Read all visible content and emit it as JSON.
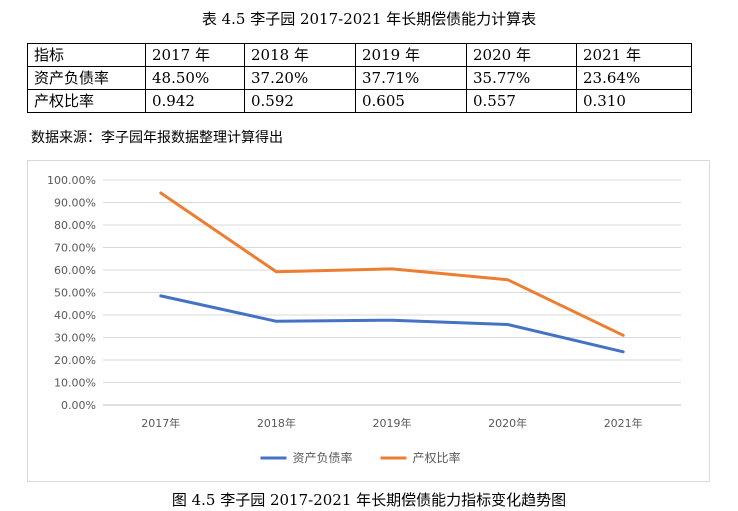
{
  "table_title": "表 4.5 李子园 2017-2021 年长期偿债能力计算表",
  "table": {
    "header": [
      "指标",
      "2017 年",
      "2018 年",
      "2019 年",
      "2020 年",
      "2021 年"
    ],
    "rows": [
      [
        "资产负债率",
        "48.50%",
        "37.20%",
        "37.71%",
        "35.77%",
        "23.64%"
      ],
      [
        "产权比率",
        "0.942",
        "0.592",
        "0.605",
        "0.557",
        "0.310"
      ]
    ]
  },
  "source_note": "数据来源：李子园年报数据整理计算得出",
  "figure_caption": "图 4.5 李子园 2017-2021 年长期偿债能力指标变化趋势图",
  "chart_data": {
    "type": "line",
    "categories": [
      "2017年",
      "2018年",
      "2019年",
      "2020年",
      "2021年"
    ],
    "series": [
      {
        "name": "资产负债率",
        "color": "#4472C4",
        "values": [
          48.5,
          37.2,
          37.71,
          35.77,
          23.64
        ]
      },
      {
        "name": "产权比率",
        "color": "#ED7D31",
        "values": [
          94.2,
          59.2,
          60.5,
          55.7,
          31.0
        ]
      }
    ],
    "ylim": [
      0,
      100
    ],
    "ytick_step": 10,
    "ytick_labels": [
      "0.00%",
      "10.00%",
      "20.00%",
      "30.00%",
      "40.00%",
      "50.00%",
      "60.00%",
      "70.00%",
      "80.00%",
      "90.00%",
      "100.00%"
    ],
    "grid": true,
    "legend": "bottom"
  }
}
